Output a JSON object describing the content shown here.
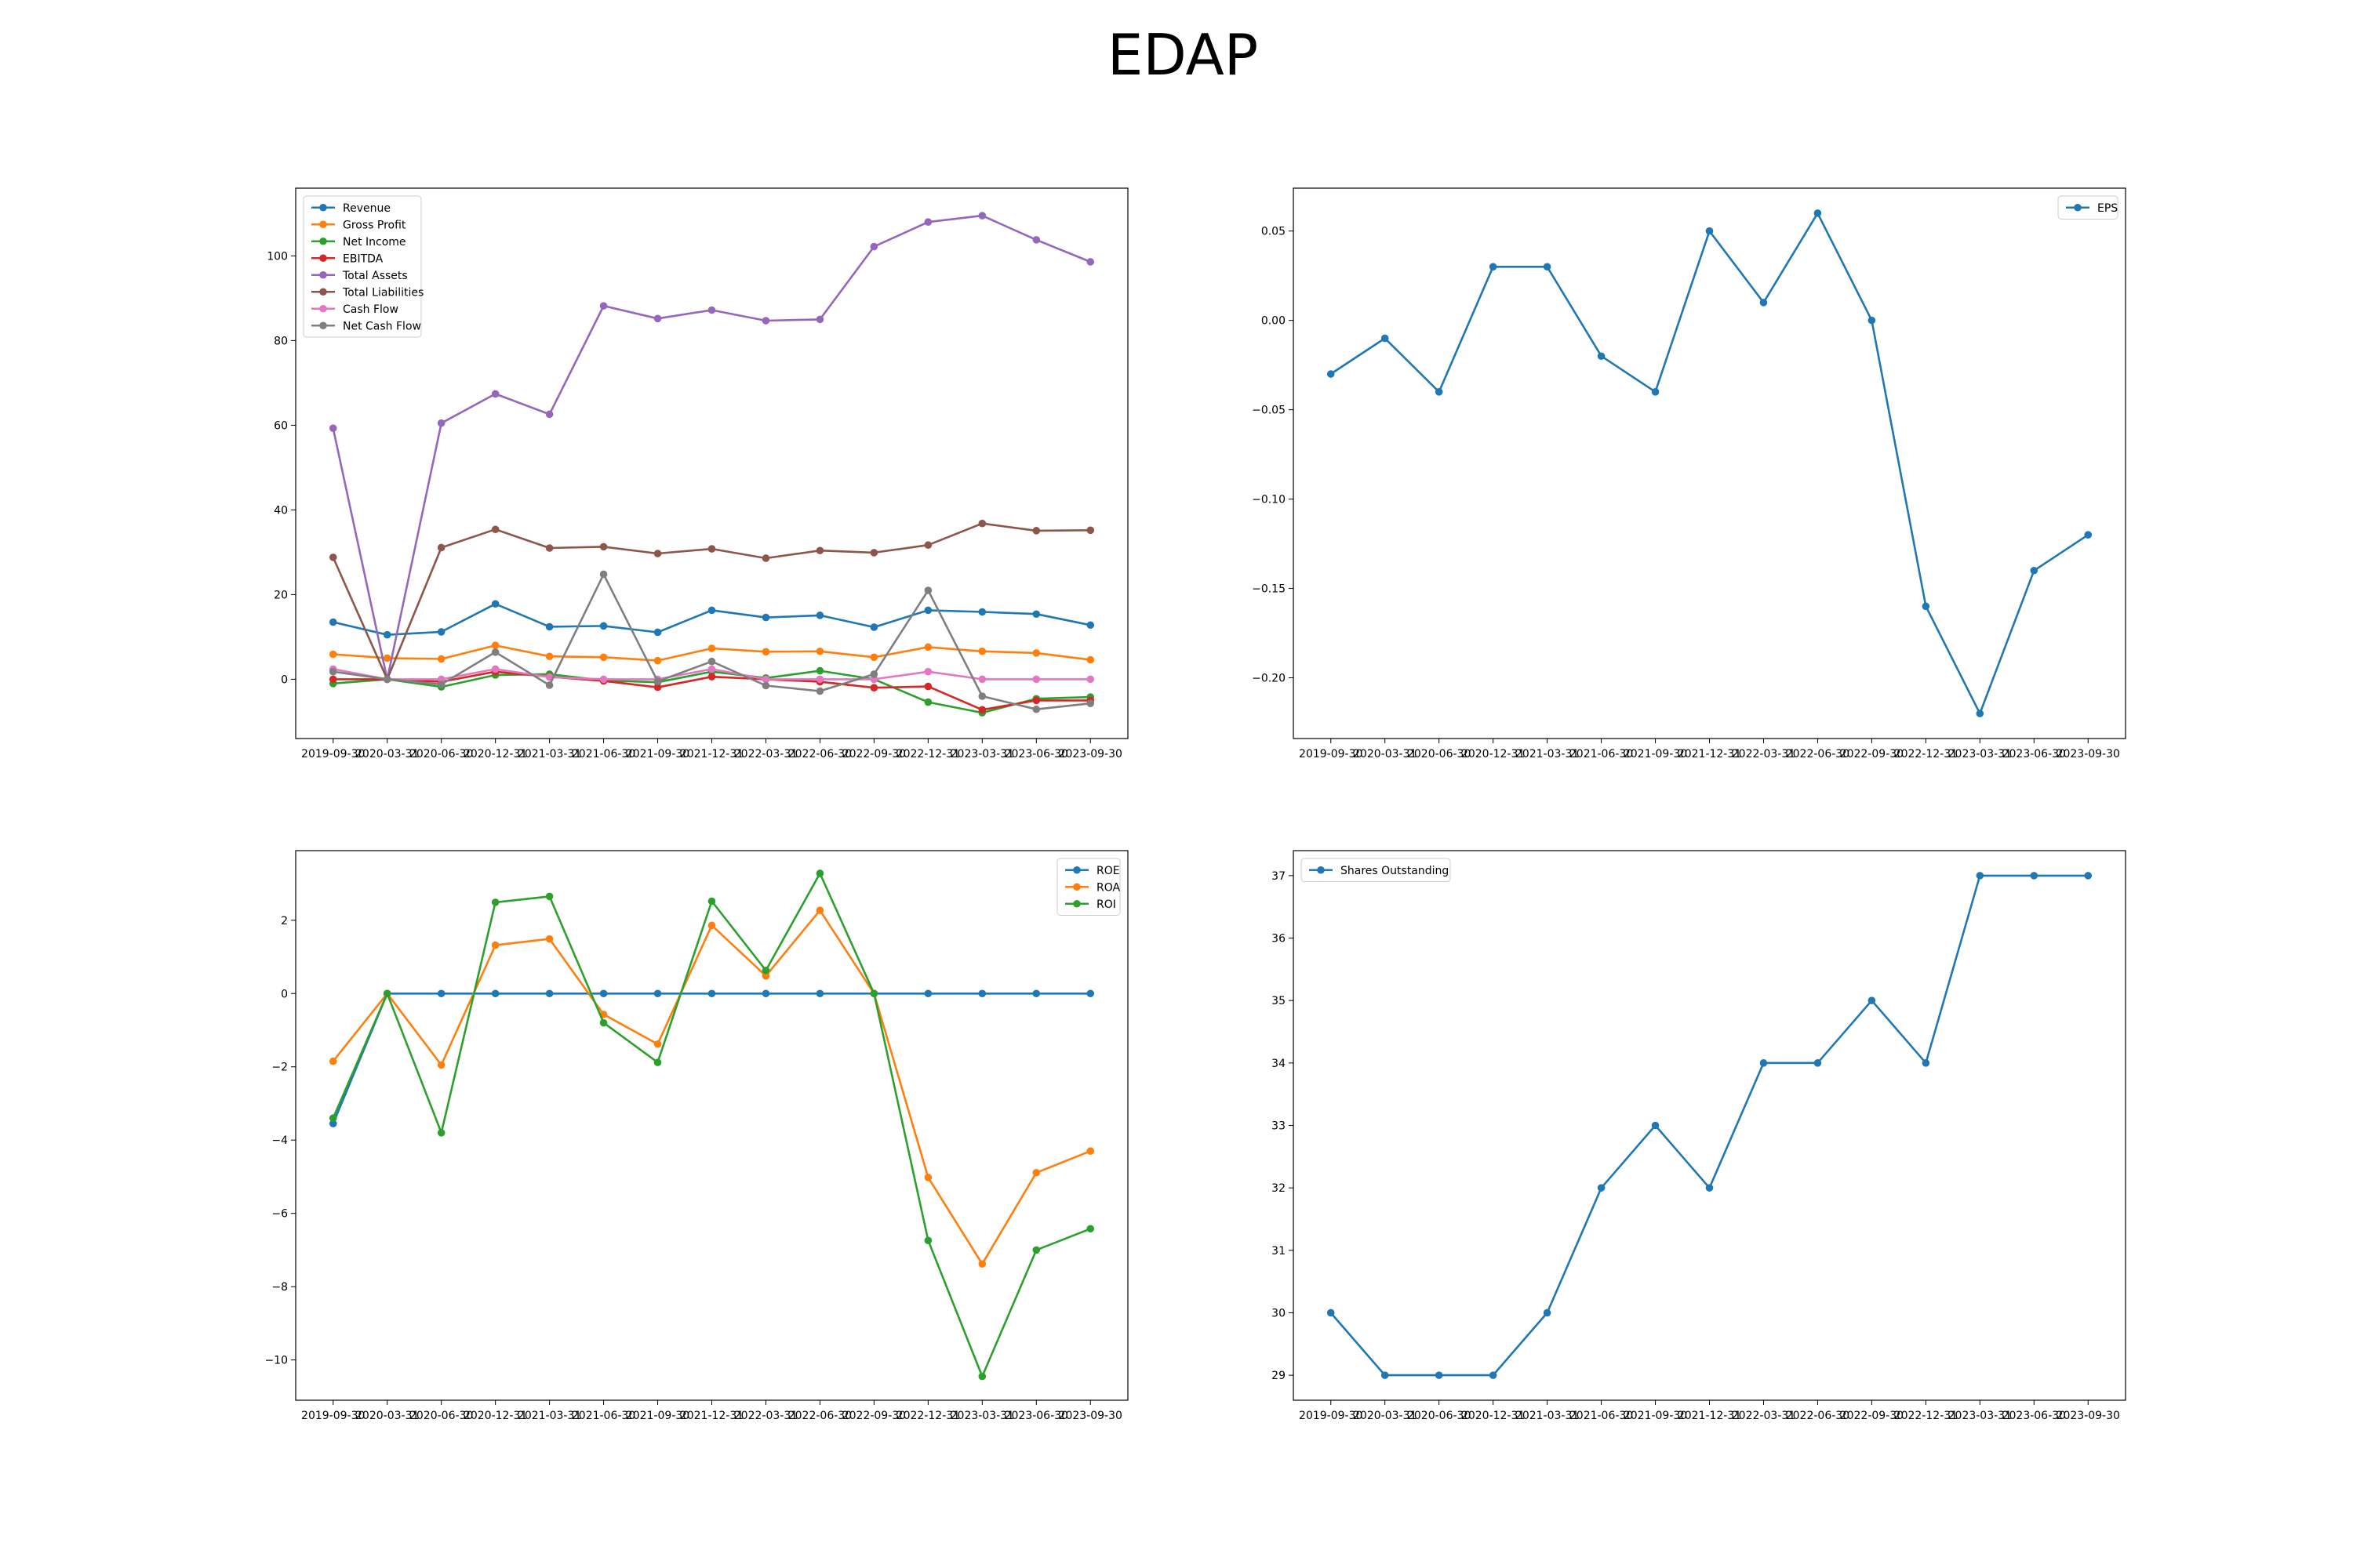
{
  "title": "EDAP",
  "colors": {
    "blue": "#1f77b4",
    "orange": "#ff7f0e",
    "green": "#2ca02c",
    "red": "#d62728",
    "purple": "#9467bd",
    "brown": "#8c564b",
    "pink": "#e377c2",
    "gray": "#7f7f7f"
  },
  "chart_data": [
    {
      "type": "line",
      "x": [
        "2019-09-30",
        "2020-03-31",
        "2020-06-30",
        "2020-12-31",
        "2021-03-31",
        "2021-06-30",
        "2021-09-30",
        "2021-12-31",
        "2022-03-31",
        "2022-06-30",
        "2022-09-30",
        "2022-12-31",
        "2023-03-31",
        "2023-06-30",
        "2023-09-30"
      ],
      "ylim": [
        -14,
        116
      ],
      "yticks": [
        0,
        20,
        40,
        60,
        80,
        100
      ],
      "legend": "upper left",
      "series": [
        {
          "name": "Revenue",
          "color": "blue",
          "values": [
            13.5,
            10.5,
            11.2,
            17.8,
            12.4,
            12.6,
            11.1,
            16.3,
            14.6,
            15.1,
            12.3,
            16.3,
            15.9,
            15.4,
            12.8
          ]
        },
        {
          "name": "Gross Profit",
          "color": "orange",
          "values": [
            5.9,
            5.0,
            4.8,
            8.0,
            5.4,
            5.2,
            4.4,
            7.3,
            6.5,
            6.6,
            5.2,
            7.6,
            6.6,
            6.2,
            4.6
          ]
        },
        {
          "name": "Net Income",
          "color": "green",
          "values": [
            -1.0,
            0.0,
            -1.8,
            1.0,
            1.2,
            -0.3,
            -0.7,
            1.8,
            0.3,
            2.0,
            0.0,
            -5.4,
            -7.9,
            -4.6,
            -4.2
          ]
        },
        {
          "name": "EBITDA",
          "color": "red",
          "values": [
            0.0,
            0.0,
            -0.6,
            1.8,
            0.6,
            -0.4,
            -1.9,
            0.6,
            0.0,
            -0.6,
            -2.0,
            -1.7,
            -7.2,
            -5.0,
            -5.0
          ]
        },
        {
          "name": "Total Assets",
          "color": "purple",
          "values": [
            59.3,
            0.0,
            60.5,
            67.4,
            62.6,
            88.2,
            85.2,
            87.2,
            84.7,
            85.0,
            102.2,
            108.0,
            109.5,
            103.8,
            98.6
          ]
        },
        {
          "name": "Total Liabilities",
          "color": "brown",
          "values": [
            28.8,
            0.0,
            31.1,
            35.4,
            31.0,
            31.3,
            29.7,
            30.8,
            28.6,
            30.4,
            29.9,
            31.7,
            36.8,
            35.1,
            35.2
          ]
        },
        {
          "name": "Cash Flow",
          "color": "pink",
          "values": [
            2.4,
            0.0,
            0.0,
            2.4,
            0.5,
            0.0,
            0.0,
            2.4,
            0.0,
            0.0,
            0.0,
            1.8,
            0.0,
            0.0,
            0.0
          ]
        },
        {
          "name": "Net Cash Flow",
          "color": "gray",
          "values": [
            1.8,
            0.0,
            -1.2,
            6.4,
            -1.4,
            24.8,
            -0.5,
            4.2,
            -1.5,
            -2.8,
            1.2,
            21.0,
            -4.0,
            -7.1,
            -5.7
          ]
        }
      ]
    },
    {
      "type": "line",
      "x": [
        "2019-09-30",
        "2020-03-31",
        "2020-06-30",
        "2020-12-31",
        "2021-03-31",
        "2021-06-30",
        "2021-09-30",
        "2021-12-31",
        "2022-03-31",
        "2022-06-30",
        "2022-09-30",
        "2022-12-31",
        "2023-03-31",
        "2023-06-30",
        "2023-09-30"
      ],
      "ylim": [
        -0.234,
        0.074
      ],
      "yticks": [
        -0.2,
        -0.15,
        -0.1,
        -0.05,
        0.0,
        0.05
      ],
      "ytick_labels": [
        "−0.20",
        "−0.15",
        "−0.10",
        "−0.05",
        "0.00",
        "0.05"
      ],
      "legend": "upper right",
      "series": [
        {
          "name": "EPS",
          "color": "blue",
          "values": [
            -0.03,
            -0.01,
            -0.04,
            0.03,
            0.03,
            -0.02,
            -0.04,
            0.05,
            0.01,
            0.06,
            0.0,
            -0.16,
            -0.22,
            -0.14,
            -0.12
          ]
        }
      ]
    },
    {
      "type": "line",
      "x": [
        "2019-09-30",
        "2020-03-31",
        "2020-06-30",
        "2020-12-31",
        "2021-03-31",
        "2021-06-30",
        "2021-09-30",
        "2021-12-31",
        "2022-03-31",
        "2022-06-30",
        "2022-09-30",
        "2022-12-31",
        "2023-03-31",
        "2023-06-30",
        "2023-09-30"
      ],
      "ylim": [
        -11.1,
        3.9
      ],
      "yticks": [
        -10,
        -8,
        -6,
        -4,
        -2,
        0,
        2
      ],
      "ytick_labels": [
        "−10",
        "−8",
        "−6",
        "−4",
        "−2",
        "0",
        "2"
      ],
      "legend": "upper right",
      "series": [
        {
          "name": "ROE",
          "color": "blue",
          "values": [
            -3.55,
            0,
            0,
            0,
            0,
            0,
            0,
            0,
            0,
            0,
            0,
            0,
            0,
            0,
            0
          ]
        },
        {
          "name": "ROA",
          "color": "orange",
          "values": [
            -1.85,
            0.0,
            -1.95,
            1.32,
            1.49,
            -0.57,
            -1.38,
            1.86,
            0.48,
            2.27,
            0.0,
            -5.02,
            -7.38,
            -4.89,
            -4.3
          ]
        },
        {
          "name": "ROI",
          "color": "green",
          "values": [
            -3.4,
            0.0,
            -3.8,
            2.49,
            2.65,
            -0.8,
            -1.88,
            2.52,
            0.63,
            3.28,
            0.0,
            -6.74,
            -10.45,
            -7.0,
            -6.42
          ]
        }
      ]
    },
    {
      "type": "line",
      "x": [
        "2019-09-30",
        "2020-03-31",
        "2020-06-30",
        "2020-12-31",
        "2021-03-31",
        "2021-06-30",
        "2021-09-30",
        "2021-12-31",
        "2022-03-31",
        "2022-06-30",
        "2022-09-30",
        "2022-12-31",
        "2023-03-31",
        "2023-06-30",
        "2023-09-30"
      ],
      "ylim": [
        28.6,
        37.4
      ],
      "yticks": [
        29,
        30,
        31,
        32,
        33,
        34,
        35,
        36,
        37
      ],
      "legend": "upper left",
      "series": [
        {
          "name": "Shares Outstanding",
          "color": "blue",
          "values": [
            30,
            29,
            29,
            29,
            30,
            32,
            33,
            32,
            34,
            34,
            35,
            34,
            37,
            37,
            37
          ]
        }
      ]
    }
  ]
}
